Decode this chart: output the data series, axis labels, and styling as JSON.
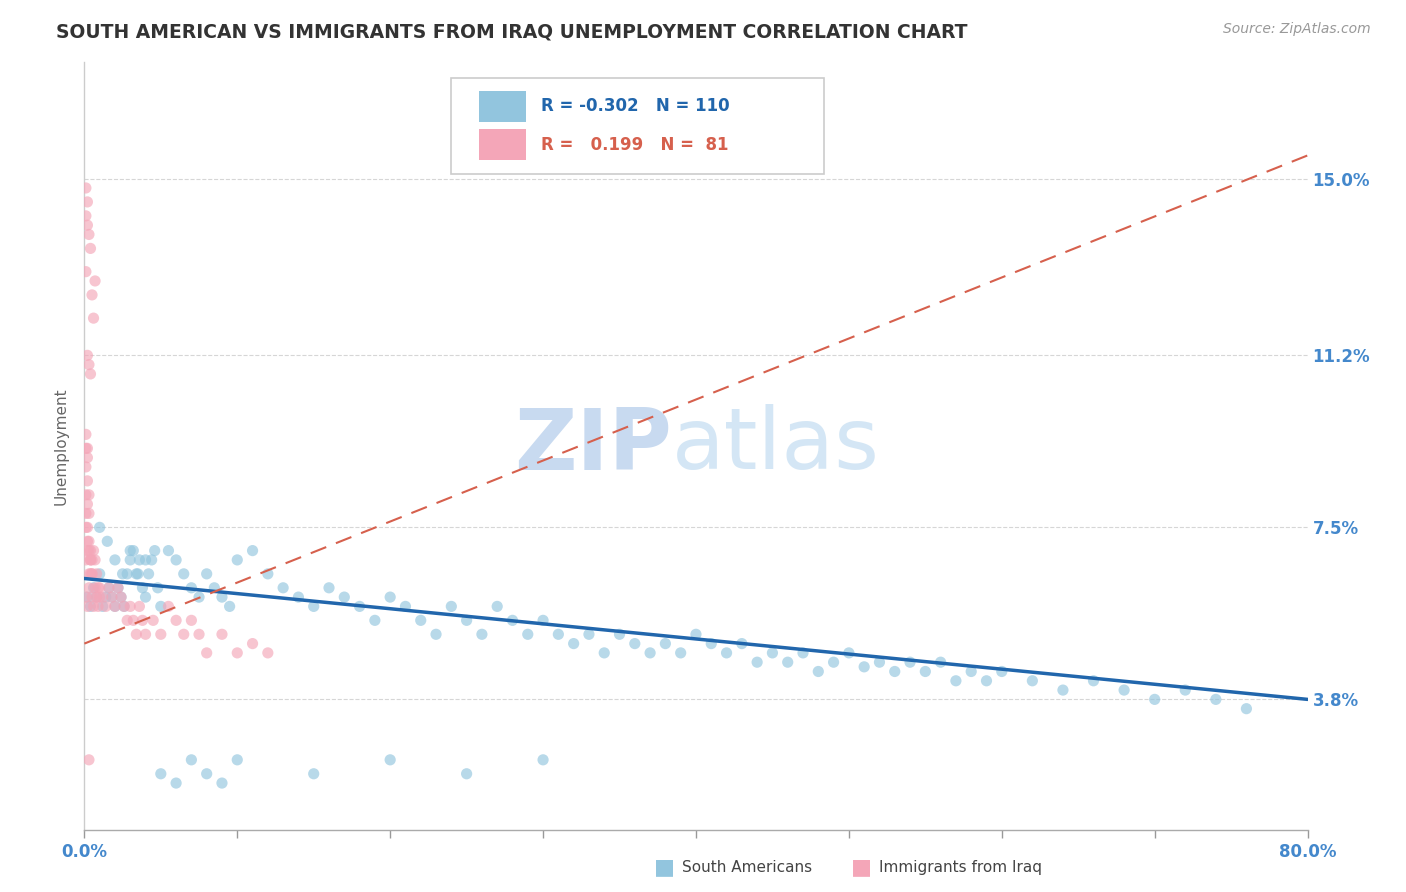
{
  "title": "SOUTH AMERICAN VS IMMIGRANTS FROM IRAQ UNEMPLOYMENT CORRELATION CHART",
  "source": "Source: ZipAtlas.com",
  "ylabel": "Unemployment",
  "xmin": 0.0,
  "xmax": 0.8,
  "ymin": 0.01,
  "ymax": 0.175,
  "ytick_labels": [
    "15.0%",
    "11.2%",
    "7.5%",
    "3.8%"
  ],
  "ytick_values": [
    0.15,
    0.112,
    0.075,
    0.038
  ],
  "blue_scatter_color": "#92c5de",
  "pink_scatter_color": "#f4a6b8",
  "blue_line_color": "#2166ac",
  "pink_line_color": "#d6604d",
  "grid_color": "#cccccc",
  "bg_color": "#ffffff",
  "title_color": "#333333",
  "axis_tick_color": "#4488cc",
  "watermark_color": "#c8daf0",
  "legend_r1": "-0.302",
  "legend_n1": "110",
  "legend_r2": "0.199",
  "legend_n2": "81",
  "blue_trend_x": [
    0.0,
    0.8
  ],
  "blue_trend_y": [
    0.064,
    0.038
  ],
  "pink_trend_x": [
    0.0,
    0.8
  ],
  "pink_trend_y": [
    0.05,
    0.155
  ],
  "sa_x": [
    0.002,
    0.004,
    0.006,
    0.008,
    0.01,
    0.012,
    0.014,
    0.016,
    0.018,
    0.02,
    0.022,
    0.024,
    0.026,
    0.028,
    0.03,
    0.032,
    0.034,
    0.036,
    0.038,
    0.04,
    0.042,
    0.044,
    0.046,
    0.048,
    0.05,
    0.055,
    0.06,
    0.065,
    0.07,
    0.075,
    0.08,
    0.085,
    0.09,
    0.095,
    0.1,
    0.11,
    0.12,
    0.13,
    0.14,
    0.15,
    0.16,
    0.17,
    0.18,
    0.19,
    0.2,
    0.21,
    0.22,
    0.23,
    0.24,
    0.25,
    0.26,
    0.27,
    0.28,
    0.29,
    0.3,
    0.31,
    0.32,
    0.33,
    0.34,
    0.35,
    0.36,
    0.37,
    0.38,
    0.39,
    0.4,
    0.41,
    0.42,
    0.43,
    0.44,
    0.45,
    0.46,
    0.47,
    0.48,
    0.49,
    0.5,
    0.51,
    0.52,
    0.53,
    0.54,
    0.55,
    0.56,
    0.57,
    0.58,
    0.59,
    0.6,
    0.62,
    0.64,
    0.66,
    0.68,
    0.7,
    0.72,
    0.74,
    0.76,
    0.01,
    0.015,
    0.02,
    0.025,
    0.03,
    0.035,
    0.04,
    0.05,
    0.06,
    0.07,
    0.08,
    0.09,
    0.1,
    0.15,
    0.2,
    0.25,
    0.3
  ],
  "sa_y": [
    0.06,
    0.058,
    0.062,
    0.06,
    0.065,
    0.058,
    0.06,
    0.062,
    0.06,
    0.058,
    0.062,
    0.06,
    0.058,
    0.065,
    0.068,
    0.07,
    0.065,
    0.068,
    0.062,
    0.06,
    0.065,
    0.068,
    0.07,
    0.062,
    0.058,
    0.07,
    0.068,
    0.065,
    0.062,
    0.06,
    0.065,
    0.062,
    0.06,
    0.058,
    0.068,
    0.07,
    0.065,
    0.062,
    0.06,
    0.058,
    0.062,
    0.06,
    0.058,
    0.055,
    0.06,
    0.058,
    0.055,
    0.052,
    0.058,
    0.055,
    0.052,
    0.058,
    0.055,
    0.052,
    0.055,
    0.052,
    0.05,
    0.052,
    0.048,
    0.052,
    0.05,
    0.048,
    0.05,
    0.048,
    0.052,
    0.05,
    0.048,
    0.05,
    0.046,
    0.048,
    0.046,
    0.048,
    0.044,
    0.046,
    0.048,
    0.045,
    0.046,
    0.044,
    0.046,
    0.044,
    0.046,
    0.042,
    0.044,
    0.042,
    0.044,
    0.042,
    0.04,
    0.042,
    0.04,
    0.038,
    0.04,
    0.038,
    0.036,
    0.075,
    0.072,
    0.068,
    0.065,
    0.07,
    0.065,
    0.068,
    0.022,
    0.02,
    0.025,
    0.022,
    0.02,
    0.025,
    0.022,
    0.025,
    0.022,
    0.025
  ],
  "iq_x": [
    0.001,
    0.002,
    0.003,
    0.004,
    0.005,
    0.006,
    0.007,
    0.008,
    0.009,
    0.01,
    0.001,
    0.002,
    0.003,
    0.004,
    0.005,
    0.006,
    0.007,
    0.008,
    0.009,
    0.01,
    0.001,
    0.002,
    0.003,
    0.004,
    0.005,
    0.001,
    0.002,
    0.003,
    0.004,
    0.005,
    0.001,
    0.002,
    0.003,
    0.001,
    0.002,
    0.003,
    0.001,
    0.002,
    0.001,
    0.002,
    0.012,
    0.014,
    0.016,
    0.018,
    0.02,
    0.022,
    0.024,
    0.026,
    0.028,
    0.03,
    0.032,
    0.034,
    0.036,
    0.038,
    0.04,
    0.045,
    0.05,
    0.055,
    0.06,
    0.065,
    0.07,
    0.075,
    0.08,
    0.09,
    0.1,
    0.11,
    0.12,
    0.003,
    0.004,
    0.002,
    0.001,
    0.005,
    0.006,
    0.007,
    0.002,
    0.003,
    0.001,
    0.004,
    0.002,
    0.001,
    0.003
  ],
  "iq_y": [
    0.06,
    0.058,
    0.062,
    0.065,
    0.06,
    0.058,
    0.062,
    0.06,
    0.058,
    0.062,
    0.068,
    0.07,
    0.065,
    0.068,
    0.065,
    0.07,
    0.068,
    0.065,
    0.062,
    0.06,
    0.075,
    0.072,
    0.07,
    0.068,
    0.065,
    0.078,
    0.075,
    0.072,
    0.07,
    0.068,
    0.082,
    0.08,
    0.078,
    0.088,
    0.085,
    0.082,
    0.092,
    0.09,
    0.095,
    0.092,
    0.06,
    0.058,
    0.062,
    0.06,
    0.058,
    0.062,
    0.06,
    0.058,
    0.055,
    0.058,
    0.055,
    0.052,
    0.058,
    0.055,
    0.052,
    0.055,
    0.052,
    0.058,
    0.055,
    0.052,
    0.055,
    0.052,
    0.048,
    0.052,
    0.048,
    0.05,
    0.048,
    0.11,
    0.108,
    0.112,
    0.13,
    0.125,
    0.12,
    0.128,
    0.14,
    0.138,
    0.142,
    0.135,
    0.145,
    0.148,
    0.025
  ]
}
